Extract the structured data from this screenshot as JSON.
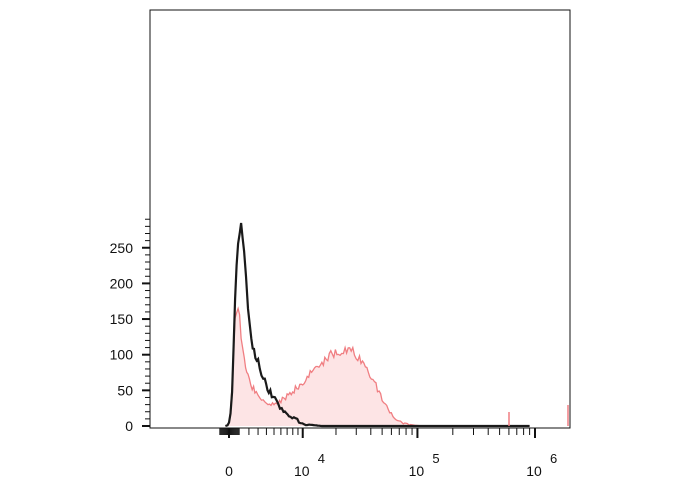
{
  "chart_data": {
    "type": "area",
    "title": "",
    "xlabel": "",
    "ylabel": "",
    "x_scale": "biexponential",
    "ylim": [
      0,
      290
    ],
    "grid": false,
    "legend": "none",
    "y_ticks": [
      {
        "value": 0,
        "label": "0"
      },
      {
        "value": 50,
        "label": "50"
      },
      {
        "value": 100,
        "label": "100"
      },
      {
        "value": 150,
        "label": "150"
      },
      {
        "value": 200,
        "label": "200"
      },
      {
        "value": 250,
        "label": "250"
      }
    ],
    "x_ticks": [
      {
        "value": 0,
        "label": "0",
        "base": "",
        "exp": ""
      },
      {
        "value": 10000,
        "label": "10^4",
        "base": "10",
        "exp": "4"
      },
      {
        "value": 100000,
        "label": "10^5",
        "base": "10",
        "exp": "5"
      },
      {
        "value": 1000000,
        "label": "10^6",
        "base": "10",
        "exp": "6"
      }
    ],
    "series": [
      {
        "kind": "filled",
        "color": "#f07e82",
        "fill": "#fde4e5",
        "points": [
          [
            -350,
            0
          ],
          [
            -150,
            1
          ],
          [
            0,
            4
          ],
          [
            150,
            20
          ],
          [
            300,
            58
          ],
          [
            450,
            110
          ],
          [
            600,
            148
          ],
          [
            750,
            165
          ],
          [
            900,
            160
          ],
          [
            1050,
            150
          ],
          [
            1200,
            128
          ],
          [
            1400,
            100
          ],
          [
            1650,
            82
          ],
          [
            1900,
            70
          ],
          [
            2200,
            58
          ],
          [
            2500,
            52
          ],
          [
            2800,
            48
          ],
          [
            3200,
            40
          ],
          [
            3600,
            36
          ],
          [
            4200,
            33
          ],
          [
            5000,
            30
          ],
          [
            6000,
            35
          ],
          [
            7000,
            42
          ],
          [
            8500,
            52
          ],
          [
            10000,
            62
          ],
          [
            12500,
            78
          ],
          [
            15000,
            90
          ],
          [
            18000,
            100
          ],
          [
            21000,
            104
          ],
          [
            24000,
            110
          ],
          [
            28000,
            104
          ],
          [
            32000,
            96
          ],
          [
            37000,
            82
          ],
          [
            43000,
            62
          ],
          [
            50000,
            38
          ],
          [
            58000,
            20
          ],
          [
            66000,
            9
          ],
          [
            80000,
            3
          ],
          [
            95000,
            1
          ],
          [
            120000,
            0
          ],
          [
            900000,
            0
          ]
        ]
      },
      {
        "kind": "outline",
        "color": "#1a1a1a",
        "points": [
          [
            -350,
            0
          ],
          [
            -150,
            1
          ],
          [
            0,
            4
          ],
          [
            150,
            16
          ],
          [
            300,
            48
          ],
          [
            450,
            110
          ],
          [
            600,
            175
          ],
          [
            750,
            225
          ],
          [
            900,
            255
          ],
          [
            1050,
            270
          ],
          [
            1200,
            282
          ],
          [
            1350,
            268
          ],
          [
            1500,
            240
          ],
          [
            1700,
            205
          ],
          [
            1900,
            170
          ],
          [
            2100,
            140
          ],
          [
            2400,
            115
          ],
          [
            2700,
            98
          ],
          [
            3000,
            88
          ],
          [
            3400,
            72
          ],
          [
            3800,
            62
          ],
          [
            4300,
            50
          ],
          [
            4900,
            40
          ],
          [
            5600,
            30
          ],
          [
            6400,
            22
          ],
          [
            7300,
            16
          ],
          [
            8200,
            11
          ],
          [
            9200,
            7
          ],
          [
            10300,
            4
          ],
          [
            11500,
            2
          ],
          [
            13000,
            1
          ],
          [
            15000,
            0
          ],
          [
            900000,
            0
          ]
        ]
      }
    ]
  }
}
